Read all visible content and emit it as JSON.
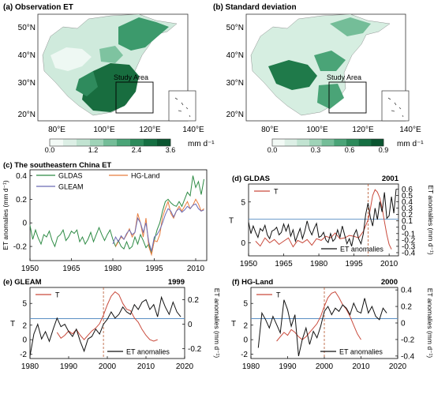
{
  "maps": [
    {
      "title": "(a) Observation ET",
      "lat_labels": [
        "50°N",
        "40°N",
        "30°N",
        "20°N"
      ],
      "lon_labels": [
        "80°E",
        "100°E",
        "120°E",
        "140°E"
      ],
      "study_label": "Study Area",
      "colorbar": {
        "ticks": [
          "0.0",
          "1.2",
          "2.4",
          "3.6"
        ],
        "unit": "mm d⁻¹",
        "colors": [
          "#f3faf6",
          "#dcefe5",
          "#c1e3d1",
          "#9fd3b8",
          "#74bd98",
          "#4aa477",
          "#2c8a5a",
          "#156f42",
          "#0a5530"
        ]
      }
    },
    {
      "title": "(b) Standard deviation",
      "lat_labels": [
        "50°N",
        "40°N",
        "30°N",
        "20°N"
      ],
      "lon_labels": [
        "80°E",
        "100°E",
        "120°E",
        "140°E"
      ],
      "study_label": "Study Area",
      "colorbar": {
        "ticks": [
          "0.0",
          "0.3",
          "0.6",
          "0.9"
        ],
        "unit": "mm d⁻¹",
        "colors": [
          "#f3faf6",
          "#dcefe5",
          "#c1e3d1",
          "#9fd3b8",
          "#74bd98",
          "#4aa477",
          "#2c8a5a",
          "#156f42",
          "#0a5530"
        ]
      }
    }
  ],
  "chart_data": [
    {
      "id": "c",
      "type": "line",
      "title": "(c) The southeastern China ET",
      "xlabel": "",
      "ylabel": "ET anomalies (mm d⁻¹)",
      "xlim": [
        1950,
        2014
      ],
      "ylim": [
        -0.32,
        0.45
      ],
      "xticks": [
        1950,
        1965,
        1980,
        1995,
        2010
      ],
      "yticks": [
        -0.2,
        0,
        0.2,
        0.4
      ],
      "legend": [
        "GLDAS",
        "HG-Land",
        "GLEAM"
      ],
      "series": [
        {
          "name": "GLDAS",
          "color": "#2e8b45",
          "x": [
            1950,
            1951,
            1952,
            1953,
            1954,
            1955,
            1956,
            1957,
            1958,
            1959,
            1960,
            1961,
            1962,
            1963,
            1964,
            1965,
            1966,
            1967,
            1968,
            1969,
            1970,
            1971,
            1972,
            1973,
            1974,
            1975,
            1976,
            1977,
            1978,
            1979,
            1980,
            1981,
            1982,
            1983,
            1984,
            1985,
            1986,
            1987,
            1988,
            1989,
            1990,
            1991,
            1992,
            1993,
            1994,
            1995,
            1996,
            1997,
            1998,
            1999,
            2000,
            2001,
            2002,
            2003,
            2004,
            2005,
            2006,
            2007,
            2008,
            2009,
            2010,
            2011,
            2012,
            2013
          ],
          "y": [
            -0.02,
            -0.14,
            -0.06,
            -0.13,
            -0.18,
            -0.1,
            -0.12,
            -0.07,
            -0.15,
            -0.2,
            -0.12,
            -0.1,
            -0.06,
            -0.15,
            -0.12,
            -0.07,
            -0.09,
            -0.06,
            -0.16,
            -0.12,
            -0.18,
            -0.14,
            -0.08,
            -0.16,
            -0.1,
            -0.04,
            -0.1,
            -0.15,
            -0.1,
            -0.06,
            -0.14,
            -0.2,
            -0.15,
            -0.2,
            -0.22,
            -0.16,
            -0.22,
            -0.2,
            -0.12,
            -0.18,
            -0.1,
            -0.15,
            -0.21,
            -0.18,
            -0.26,
            -0.15,
            -0.06,
            0.0,
            0.1,
            0.18,
            0.2,
            0.17,
            0.15,
            0.14,
            0.18,
            0.14,
            0.2,
            0.26,
            0.23,
            0.4,
            0.3,
            0.35,
            0.24,
            0.37
          ]
        },
        {
          "name": "HG-Land",
          "color": "#e87d3e",
          "x": [
            1981,
            1982,
            1983,
            1984,
            1985,
            1986,
            1987,
            1988,
            1989,
            1990,
            1991,
            1992,
            1993,
            1994,
            1995,
            1996,
            1997,
            1998,
            1999,
            2000,
            2001,
            2002,
            2003,
            2004,
            2005,
            2006,
            2007,
            2008,
            2009,
            2010,
            2011,
            2012,
            2013
          ],
          "y": [
            -0.2,
            -0.16,
            -0.12,
            -0.14,
            -0.1,
            -0.05,
            -0.12,
            -0.08,
            0.08,
            0.0,
            -0.12,
            0.04,
            -0.2,
            -0.27,
            -0.15,
            -0.16,
            -0.1,
            0.05,
            0.12,
            0.18,
            0.08,
            0.04,
            0.1,
            0.14,
            0.1,
            0.14,
            0.18,
            0.12,
            0.15,
            0.2,
            0.16,
            0.1,
            0.12
          ]
        },
        {
          "name": "GLEAM",
          "color": "#6a6bb5",
          "x": [
            1980,
            1981,
            1982,
            1983,
            1984,
            1985,
            1986,
            1987,
            1988,
            1989,
            1990,
            1991,
            1992,
            1993,
            1994,
            1995,
            1996,
            1997,
            1998,
            1999,
            2000,
            2001,
            2002,
            2003,
            2004,
            2005,
            2006,
            2007,
            2008,
            2009,
            2010,
            2011,
            2012,
            2013
          ],
          "y": [
            -0.18,
            -0.12,
            -0.16,
            -0.11,
            -0.14,
            -0.09,
            -0.06,
            -0.1,
            -0.08,
            0.04,
            0.0,
            -0.08,
            0.0,
            -0.16,
            -0.24,
            -0.12,
            -0.1,
            -0.06,
            0.0,
            0.07,
            0.12,
            0.1,
            0.05,
            0.1,
            0.12,
            0.09,
            0.11,
            0.14,
            0.12,
            0.15,
            0.16,
            0.12,
            0.1,
            0.11
          ]
        }
      ]
    },
    {
      "id": "d",
      "type": "line",
      "title": "(d) GLDAS",
      "breakpoint_label": "2001",
      "breakpoint": 2001,
      "xlim": [
        1950,
        2014
      ],
      "xticks": [
        1950,
        1965,
        1980,
        1995,
        2010
      ],
      "ylabel_left": "T",
      "ylim_left": [
        -1.6,
        7.2
      ],
      "yticks_left": [
        0,
        5
      ],
      "ylabel_right": "ET anomalies (mm d⁻¹)",
      "ylim_right": [
        -0.45,
        0.68
      ],
      "yticks_right": [
        -0.4,
        -0.3,
        -0.2,
        -0.1,
        0,
        0.1,
        0.2,
        0.3,
        0.4,
        0.5,
        0.6
      ],
      "threshold_T": 2.9,
      "legend_T": "T",
      "legend_ET": "ET anomalies",
      "series_T": {
        "name": "T",
        "color": "#c94a3c",
        "x": [
          1953,
          1955,
          1957,
          1959,
          1961,
          1963,
          1965,
          1967,
          1969,
          1971,
          1973,
          1975,
          1977,
          1979,
          1981,
          1983,
          1985,
          1987,
          1989,
          1991,
          1993,
          1995,
          1997,
          1999,
          2001,
          2002,
          2003,
          2004,
          2005,
          2006,
          2007,
          2008,
          2009,
          2010,
          2011
        ],
        "y": [
          0.2,
          -0.4,
          0.6,
          0.0,
          0.4,
          -0.2,
          0.2,
          0.6,
          -0.5,
          0.3,
          0.0,
          0.4,
          -0.3,
          0.5,
          0.3,
          0.8,
          0.6,
          1.2,
          0.5,
          0.6,
          0.9,
          0.8,
          0.6,
          1.4,
          2.8,
          4.2,
          5.8,
          6.5,
          6.2,
          5.5,
          4.3,
          2.6,
          1.0,
          -0.2,
          -0.8
        ]
      },
      "series_ET": {
        "name": "ET anomalies",
        "color": "#111111",
        "x": [
          1950,
          1951,
          1952,
          1953,
          1954,
          1955,
          1956,
          1957,
          1958,
          1959,
          1960,
          1961,
          1962,
          1963,
          1964,
          1965,
          1966,
          1967,
          1968,
          1969,
          1970,
          1971,
          1972,
          1973,
          1974,
          1975,
          1976,
          1977,
          1978,
          1979,
          1980,
          1981,
          1982,
          1983,
          1984,
          1985,
          1986,
          1987,
          1988,
          1989,
          1990,
          1991,
          1992,
          1993,
          1994,
          1995,
          1996,
          1997,
          1998,
          1999,
          2000,
          2001,
          2002,
          2003,
          2004,
          2005,
          2006,
          2007,
          2008,
          2009,
          2010,
          2011,
          2012,
          2013
        ],
        "y": [
          0.08,
          -0.1,
          0.02,
          -0.08,
          -0.16,
          -0.02,
          -0.06,
          0.03,
          -0.12,
          -0.18,
          -0.06,
          -0.04,
          0.0,
          -0.12,
          -0.08,
          0.05,
          -0.06,
          0.04,
          -0.14,
          -0.04,
          -0.22,
          -0.12,
          -0.02,
          -0.18,
          -0.06,
          0.1,
          -0.04,
          -0.12,
          -0.02,
          0.06,
          -0.16,
          -0.14,
          -0.08,
          -0.2,
          -0.24,
          -0.1,
          -0.22,
          -0.18,
          -0.04,
          -0.16,
          0.02,
          -0.12,
          -0.26,
          -0.18,
          -0.3,
          -0.12,
          -0.04,
          -0.18,
          -0.26,
          -0.1,
          0.2,
          0.38,
          0.15,
          0.02,
          0.3,
          0.12,
          0.4,
          0.24,
          0.55,
          0.14,
          0.18,
          0.48,
          0.22,
          0.6
        ]
      }
    },
    {
      "id": "e",
      "type": "line",
      "title": "(e) GLEAM",
      "breakpoint_label": "1999",
      "breakpoint": 1999,
      "xlim": [
        1980,
        2020
      ],
      "xticks": [
        1980,
        1990,
        2000,
        2010,
        2020
      ],
      "ylabel_left": "T",
      "ylim_left": [
        -2.6,
        7.2
      ],
      "yticks_left": [
        -2,
        0,
        2,
        5
      ],
      "ylabel_right": "ET anomalies (mm d⁻¹)",
      "ylim_right": [
        -0.28,
        0.3
      ],
      "yticks_right": [
        -0.2,
        0,
        0.2
      ],
      "threshold_T": 2.9,
      "legend_T": "T",
      "legend_ET": "ET anomalies",
      "series_T": {
        "name": "T",
        "color": "#c94a3c",
        "x": [
          1987,
          1988,
          1989,
          1990,
          1991,
          1992,
          1993,
          1994,
          1995,
          1996,
          1997,
          1998,
          1999,
          2000,
          2001,
          2002,
          2003,
          2004,
          2005,
          2006,
          2007,
          2008,
          2009,
          2010,
          2011,
          2012,
          2013
        ],
        "y": [
          1.0,
          0.2,
          0.6,
          1.2,
          0.8,
          1.4,
          0.6,
          0.0,
          0.6,
          1.2,
          1.6,
          2.2,
          3.4,
          4.8,
          6.0,
          6.6,
          6.2,
          5.0,
          4.2,
          4.0,
          3.0,
          2.4,
          1.4,
          0.6,
          0.0,
          -0.2,
          0.0
        ]
      },
      "series_ET": {
        "name": "ET anomalies",
        "color": "#111111",
        "x": [
          1980,
          1981,
          1982,
          1983,
          1984,
          1985,
          1986,
          1987,
          1988,
          1989,
          1990,
          1991,
          1992,
          1993,
          1994,
          1995,
          1996,
          1997,
          1998,
          1999,
          2000,
          2001,
          2002,
          2003,
          2004,
          2005,
          2006,
          2007,
          2008,
          2009,
          2010,
          2011,
          2012,
          2013,
          2014,
          2015,
          2016,
          2017,
          2018,
          2019
        ],
        "y": [
          -0.26,
          -0.08,
          0.0,
          -0.12,
          -0.06,
          -0.14,
          -0.04,
          0.05,
          -0.02,
          0.0,
          -0.06,
          -0.1,
          -0.04,
          -0.14,
          -0.22,
          -0.12,
          -0.1,
          -0.04,
          -0.08,
          0.0,
          0.04,
          0.1,
          0.05,
          0.08,
          0.14,
          0.1,
          0.08,
          0.16,
          0.12,
          0.18,
          0.2,
          0.12,
          0.16,
          0.06,
          0.22,
          0.14,
          0.08,
          0.18,
          0.1,
          0.06
        ]
      }
    },
    {
      "id": "f",
      "type": "line",
      "title": "(f) HG-Land",
      "breakpoint_label": "2000",
      "breakpoint": 2000,
      "xlim": [
        1980,
        2020
      ],
      "xticks": [
        1980,
        1990,
        2000,
        2010,
        2020
      ],
      "ylabel_left": "T",
      "ylim_left": [
        -2.6,
        7.2
      ],
      "yticks_left": [
        -2,
        0,
        2,
        5
      ],
      "ylabel_right": "ET anomalies (mm d⁻¹)",
      "ylim_right": [
        -0.43,
        0.43
      ],
      "yticks_right": [
        -0.4,
        -0.2,
        0,
        0.2,
        0.4
      ],
      "threshold_T": 2.9,
      "legend_T": "T",
      "legend_ET": "ET anomalies",
      "series_T": {
        "name": "T",
        "color": "#c94a3c",
        "x": [
          1987,
          1988,
          1989,
          1990,
          1991,
          1992,
          1993,
          1994,
          1995,
          1996,
          1997,
          1998,
          1999,
          2000,
          2001,
          2002,
          2003,
          2004,
          2005,
          2006,
          2007,
          2008,
          2009,
          2010
        ],
        "y": [
          -0.2,
          0.4,
          1.0,
          0.6,
          1.4,
          1.0,
          0.4,
          0.0,
          0.4,
          1.0,
          1.6,
          2.2,
          3.2,
          4.6,
          5.8,
          6.4,
          6.6,
          5.8,
          4.8,
          4.2,
          3.2,
          2.0,
          0.8,
          0.0
        ]
      },
      "series_ET": {
        "name": "ET anomalies",
        "color": "#111111",
        "x": [
          1982,
          1983,
          1984,
          1985,
          1986,
          1987,
          1988,
          1989,
          1990,
          1991,
          1992,
          1993,
          1994,
          1995,
          1996,
          1997,
          1998,
          1999,
          2000,
          2001,
          2002,
          2003,
          2004,
          2005,
          2006,
          2007,
          2008,
          2009,
          2010,
          2011,
          2012,
          2013,
          2014,
          2015,
          2016,
          2017
        ],
        "y": [
          -0.3,
          0.12,
          0.04,
          -0.06,
          0.08,
          -0.02,
          -0.12,
          0.28,
          0.16,
          -0.04,
          0.1,
          -0.4,
          -0.2,
          -0.06,
          -0.26,
          -0.1,
          -0.18,
          -0.04,
          0.14,
          0.2,
          0.1,
          0.18,
          0.14,
          0.22,
          0.18,
          0.1,
          0.24,
          0.14,
          0.12,
          0.3,
          0.12,
          0.2,
          0.08,
          0.04,
          0.18,
          0.12
        ]
      }
    }
  ]
}
